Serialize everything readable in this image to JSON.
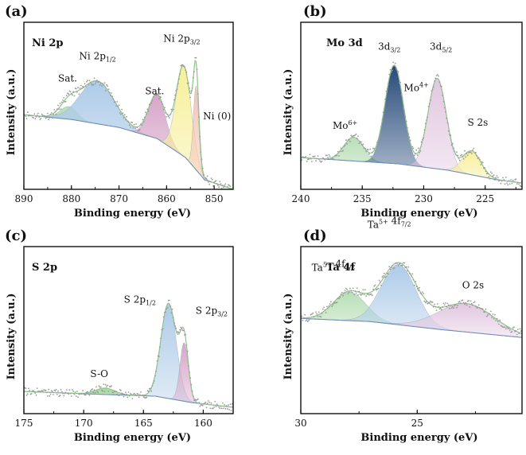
{
  "chart_data": [
    {
      "type": "line",
      "panel": "(a)",
      "title": "Ni 2p",
      "xlabel": "Binding energy (eV)",
      "ylabel": "Intensity (a.u.)",
      "xlim": [
        890,
        846
      ],
      "ylim": [
        0,
        1
      ],
      "xticks": [
        890,
        880,
        870,
        860,
        850
      ],
      "background": [
        [
          890,
          0.47
        ],
        [
          880,
          0.44
        ],
        [
          870,
          0.39
        ],
        [
          862,
          0.32
        ],
        [
          856,
          0.2
        ],
        [
          852,
          0.06
        ],
        [
          846,
          0.0
        ]
      ],
      "peaks": [
        {
          "name": "Sat.",
          "center": 880.6,
          "height": 0.08,
          "width": 1.8,
          "color": "#b9dfb8"
        },
        {
          "name": "Ni 2p1/2",
          "center": 874.6,
          "height": 0.27,
          "width": 3.6,
          "color": "#aecbe8"
        },
        {
          "name": "Sat.",
          "center": 862.0,
          "height": 0.28,
          "width": 1.8,
          "color": "#d7a6c9"
        },
        {
          "name": "Ni 2p3/2",
          "center": 856.4,
          "height": 0.57,
          "width": 1.6,
          "color": "#f7ef9a"
        },
        {
          "name": "Ni (0)",
          "center": 853.8,
          "height": 0.53,
          "width": 0.55,
          "color": "#f6c4b6"
        }
      ],
      "labels": [
        {
          "text": "Sat.",
          "sub": "",
          "sup": "",
          "x": 880.8,
          "y": 0.68
        },
        {
          "text": "Ni 2p",
          "sub": "1/2",
          "sup": "",
          "x": 874.5,
          "y": 0.82
        },
        {
          "text": "Sat.",
          "sub": "",
          "sup": "",
          "x": 862.5,
          "y": 0.6
        },
        {
          "text": "Ni 2p",
          "sub": "3/2",
          "sup": "",
          "x": 856.8,
          "y": 0.93
        },
        {
          "text": "Ni  (0)",
          "sub": "",
          "sup": "",
          "x": 849.4,
          "y": 0.44
        }
      ]
    },
    {
      "type": "line",
      "panel": "(b)",
      "title": "Mo 3d",
      "xlabel": "Binding energy (eV)",
      "ylabel": "Intensity (a.u.)",
      "xlim": [
        240,
        222
      ],
      "ylim": [
        0,
        1
      ],
      "xticks": [
        240,
        235,
        230,
        225
      ],
      "background": [
        [
          240,
          0.2
        ],
        [
          236,
          0.18
        ],
        [
          232,
          0.16
        ],
        [
          228,
          0.12
        ],
        [
          224,
          0.06
        ],
        [
          222,
          0.04
        ]
      ],
      "peaks": [
        {
          "name": "Mo6+",
          "center": 235.7,
          "height": 0.15,
          "width": 0.8,
          "color": "#b9dfb8"
        },
        {
          "name": "3d3/2",
          "center": 232.4,
          "height": 0.62,
          "width": 0.75,
          "color": "#274a7a"
        },
        {
          "name": "3d5/2",
          "center": 228.9,
          "height": 0.57,
          "width": 0.75,
          "color": "#e2c7e0"
        },
        {
          "name": "S 2s",
          "center": 226.1,
          "height": 0.15,
          "width": 0.75,
          "color": "#f7ef9a"
        }
      ],
      "labels": [
        {
          "text": "Mo",
          "sub": "",
          "sup": "6+",
          "x": 236.4,
          "y": 0.38
        },
        {
          "text": "3d",
          "sub": "3/2",
          "sup": "",
          "x": 232.8,
          "y": 0.88
        },
        {
          "text": "Mo",
          "sub": "",
          "sup": "4+",
          "x": 230.6,
          "y": 0.62
        },
        {
          "text": "3d",
          "sub": "5/2",
          "sup": "",
          "x": 228.6,
          "y": 0.88
        },
        {
          "text": "S 2s",
          "sub": "",
          "sup": "",
          "x": 225.6,
          "y": 0.4
        }
      ]
    },
    {
      "type": "line",
      "panel": "(c)",
      "title": "S 2p",
      "xlabel": "Binding energy (eV)",
      "ylabel": "Intensity (a.u.)",
      "xlim": [
        175,
        157.5
      ],
      "ylim": [
        0,
        1
      ],
      "xticks": [
        175,
        170,
        165,
        160
      ],
      "background": [
        [
          175,
          0.14
        ],
        [
          168,
          0.12
        ],
        [
          164,
          0.11
        ],
        [
          161,
          0.07
        ],
        [
          157.5,
          0.04
        ]
      ],
      "peaks": [
        {
          "name": "S-O",
          "center": 168.2,
          "height": 0.04,
          "width": 0.8,
          "color": "#a8d7a5"
        },
        {
          "name": "S 2p1/2",
          "center": 162.9,
          "height": 0.6,
          "width": 0.65,
          "color": "#aecbe8"
        },
        {
          "name": "S 2p3/2",
          "center": 161.6,
          "height": 0.37,
          "width": 0.35,
          "color": "#d7a6c9"
        }
      ],
      "labels": [
        {
          "text": "S-O",
          "sub": "",
          "sup": "",
          "x": 168.7,
          "y": 0.23
        },
        {
          "text": "S 2p",
          "sub": "1/2",
          "sup": "",
          "x": 165.3,
          "y": 0.7
        },
        {
          "text": "S 2p",
          "sub": "3/2",
          "sup": "",
          "x": 159.3,
          "y": 0.63
        }
      ]
    },
    {
      "type": "line",
      "panel": "(d)",
      "title": "Ta 4f",
      "xlabel": "Binding energy (eV)",
      "ylabel": "Intensity (a.u.)",
      "xlim": [
        30,
        20.5
      ],
      "ylim": [
        0,
        1
      ],
      "xticks": [
        30,
        25
      ],
      "background": [
        [
          30,
          0.6
        ],
        [
          27,
          0.58
        ],
        [
          24,
          0.53
        ],
        [
          20.5,
          0.48
        ]
      ],
      "peaks": [
        {
          "name": "Ta5+ 4f5/2",
          "center": 27.9,
          "height": 0.18,
          "width": 0.7,
          "color": "#b9dfb8"
        },
        {
          "name": "Ta5+ 4f7/2",
          "center": 25.8,
          "height": 0.38,
          "width": 0.75,
          "color": "#aecbe8"
        },
        {
          "name": "O 2s",
          "center": 22.9,
          "height": 0.18,
          "width": 1.2,
          "color": "#e2c7e0"
        }
      ],
      "labels": [
        {
          "text": "Ta",
          "sub": "",
          "sup": "5+",
          "tail": " 4f",
          "tailsub": "5/2",
          "x": 28.6,
          "y": 0.9
        },
        {
          "text": "Ta",
          "sub": "",
          "sup": "5+",
          "tail": " 4f",
          "tailsub": "7/2",
          "x": 26.2,
          "y": 1.17
        },
        {
          "text": "O 2s",
          "sub": "",
          "sup": "",
          "x": 22.6,
          "y": 0.79
        }
      ]
    }
  ]
}
